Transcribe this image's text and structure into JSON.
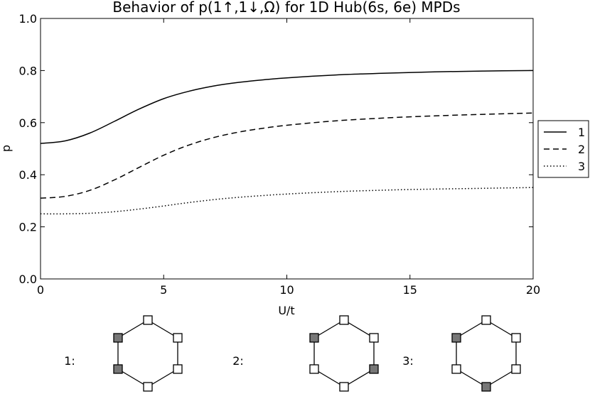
{
  "chart_data": {
    "type": "line",
    "title": "Behavior of p(1↑,1↓,Ω) for 1D Hub(6s, 6e) MPDs",
    "xlabel": "U/t",
    "ylabel": "p",
    "xlim": [
      0,
      20
    ],
    "ylim": [
      0.0,
      1.0
    ],
    "xticks": [
      "0",
      "5",
      "10",
      "15",
      "20"
    ],
    "yticks": [
      "0.0",
      "0.2",
      "0.4",
      "0.6",
      "0.8",
      "1.0"
    ],
    "grid": false,
    "legend_position": "right",
    "series": [
      {
        "name": "1",
        "style": "solid",
        "x": [
          0,
          1,
          2,
          3,
          4,
          5,
          6,
          7,
          8,
          9,
          10,
          12,
          14,
          16,
          18,
          20
        ],
        "y": [
          0.52,
          0.53,
          0.56,
          0.605,
          0.652,
          0.692,
          0.72,
          0.74,
          0.754,
          0.764,
          0.772,
          0.783,
          0.79,
          0.795,
          0.798,
          0.8
        ]
      },
      {
        "name": "2",
        "style": "dashed",
        "x": [
          0,
          1,
          2,
          3,
          4,
          5,
          6,
          7,
          8,
          9,
          10,
          12,
          14,
          16,
          18,
          20
        ],
        "y": [
          0.31,
          0.317,
          0.34,
          0.38,
          0.428,
          0.475,
          0.513,
          0.542,
          0.563,
          0.578,
          0.59,
          0.607,
          0.618,
          0.626,
          0.632,
          0.637
        ]
      },
      {
        "name": "3",
        "style": "dotted",
        "x": [
          0,
          1,
          2,
          3,
          4,
          5,
          6,
          7,
          8,
          9,
          10,
          12,
          14,
          16,
          18,
          20
        ],
        "y": [
          0.25,
          0.25,
          0.252,
          0.258,
          0.268,
          0.28,
          0.293,
          0.304,
          0.313,
          0.32,
          0.326,
          0.335,
          0.341,
          0.345,
          0.348,
          0.351
        ]
      }
    ]
  },
  "diagrams": [
    {
      "label": "1:",
      "filled": [
        true,
        true,
        false,
        false,
        false,
        false
      ]
    },
    {
      "label": "2:",
      "filled": [
        true,
        false,
        false,
        false,
        true,
        false
      ]
    },
    {
      "label": "3:",
      "filled": [
        true,
        false,
        false,
        false,
        false,
        true
      ]
    }
  ],
  "colors": {
    "line": "#000000",
    "filled_site": "#777777",
    "empty_site": "#ffffff"
  }
}
